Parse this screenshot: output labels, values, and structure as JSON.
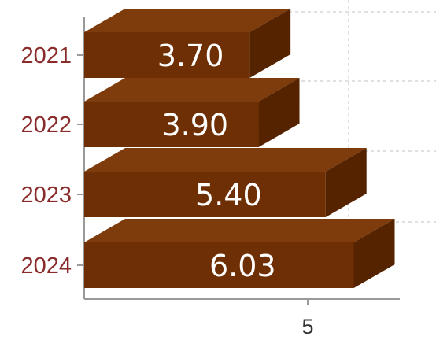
{
  "chart_data": {
    "type": "bar",
    "orientation": "horizontal",
    "style": "3d",
    "categories": [
      "2021",
      "2022",
      "2023",
      "2024"
    ],
    "values": [
      3.7,
      3.9,
      5.4,
      6.03
    ],
    "value_labels": [
      "3.70",
      "3.90",
      "5.40",
      "6.03"
    ],
    "x_ticks": [
      5
    ],
    "x_tick_labels": [
      "5"
    ],
    "title": "",
    "xlabel": "",
    "ylabel": "",
    "grid": true,
    "legend": "none"
  },
  "colors": {
    "bar_front": "#6e2f04",
    "bar_top": "#7e3b0c",
    "bar_side": "#552300",
    "category_label": "#8a2b2b",
    "axis": "#9a9a9a",
    "grid": "#d6d6d6",
    "value_label": "#ffffff"
  }
}
